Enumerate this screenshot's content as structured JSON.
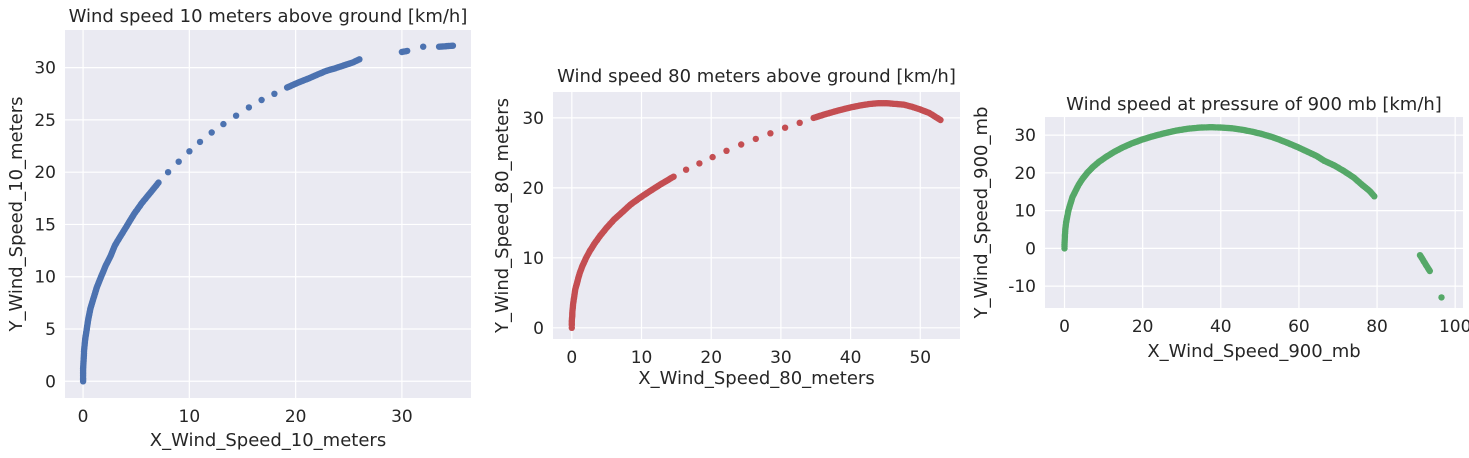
{
  "chart_data": [
    {
      "type": "scatter",
      "title": "Wind speed 10 meters above ground [km/h]",
      "xlabel": "X_Wind_Speed_10_meters",
      "ylabel": "Y_Wind_Speed_10_meters",
      "xlim": [
        -1.7,
        36.5
      ],
      "ylim": [
        -1.6,
        33.6
      ],
      "xticks": [
        0,
        10,
        20,
        30
      ],
      "yticks": [
        0,
        5,
        10,
        15,
        20,
        25,
        30
      ],
      "grid": true,
      "color": "#4C72B0",
      "x": [
        0,
        0,
        0,
        0,
        0.05,
        0.1,
        0.2,
        0.35,
        0.5,
        0.7,
        1.0,
        1.3,
        1.7,
        2.1,
        2.6,
        3.0,
        3.6,
        4.2,
        4.8,
        5.5,
        6.3,
        7.1,
        8.0,
        9.0,
        10.0,
        11.0,
        12.1,
        13.2,
        14.4,
        15.6,
        16.8,
        18.0,
        19.2,
        20.3,
        21.3,
        22.2,
        22.9,
        23.6,
        24.5,
        25.4,
        26.0,
        30.0,
        30.5,
        32.0,
        33.5,
        34.8
      ],
      "y": [
        0,
        0.3,
        0.7,
        1.2,
        2.0,
        3.0,
        4.0,
        5.0,
        6.0,
        7.0,
        8.0,
        9.0,
        10.0,
        11.0,
        12.0,
        13.0,
        14.0,
        15.0,
        16.0,
        17.0,
        18.0,
        19.0,
        20.0,
        21.0,
        22.0,
        22.9,
        23.8,
        24.6,
        25.4,
        26.2,
        26.9,
        27.5,
        28.1,
        28.6,
        29.0,
        29.4,
        29.7,
        29.9,
        30.2,
        30.5,
        30.8,
        31.5,
        31.6,
        32.0,
        32.0,
        32.1
      ]
    },
    {
      "type": "scatter",
      "title": "Wind speed 80 meters above ground [km/h]",
      "xlabel": "X_Wind_Speed_80_meters",
      "ylabel": "Y_Wind_Speed_80_meters",
      "xlim": [
        -2.7,
        55.7
      ],
      "ylim": [
        -1.6,
        33.7
      ],
      "xticks": [
        0,
        10,
        20,
        30,
        40,
        50
      ],
      "yticks": [
        0,
        10,
        20,
        30
      ],
      "grid": true,
      "color": "#C44E52",
      "x": [
        0,
        0,
        0,
        0.05,
        0.1,
        0.2,
        0.35,
        0.5,
        0.8,
        1.1,
        1.5,
        2.0,
        2.6,
        3.3,
        4.1,
        5.0,
        6.0,
        7.2,
        8.4,
        9.8,
        11.3,
        12.9,
        14.6,
        16.4,
        18.3,
        20.2,
        22.2,
        24.3,
        26.4,
        28.5,
        30.6,
        32.7,
        34.7,
        36.6,
        38.4,
        40.0,
        41.5,
        42.8,
        44.0,
        45.2,
        46.4,
        47.6,
        48.8,
        50.0,
        51.3,
        52.9
      ],
      "y": [
        0,
        0.4,
        0.9,
        1.6,
        2.5,
        3.5,
        4.5,
        5.5,
        6.6,
        7.7,
        8.8,
        9.9,
        11.0,
        12.1,
        13.2,
        14.3,
        15.4,
        16.5,
        17.6,
        18.6,
        19.6,
        20.6,
        21.6,
        22.6,
        23.5,
        24.4,
        25.3,
        26.2,
        27.0,
        27.8,
        28.6,
        29.3,
        30.0,
        30.6,
        31.1,
        31.5,
        31.8,
        32.0,
        32.1,
        32.1,
        32.0,
        31.9,
        31.6,
        31.2,
        30.7,
        29.7
      ]
    },
    {
      "type": "scatter",
      "title": "Wind speed at pressure of 900 mb [km/h]",
      "xlabel": "X_Wind_Speed_900_mb",
      "ylabel": "Y_Wind_Speed_900_mb",
      "xlim": [
        -5.0,
        102.0
      ],
      "ylim": [
        -15.8,
        34.8
      ],
      "xticks": [
        0,
        20,
        40,
        60,
        80,
        100
      ],
      "yticks": [
        -10,
        0,
        10,
        20,
        30
      ],
      "grid": true,
      "color": "#55A868",
      "x": [
        0,
        0,
        0,
        0.05,
        0.1,
        0.2,
        0.4,
        0.7,
        1.0,
        1.5,
        2.0,
        2.8,
        3.6,
        4.6,
        5.8,
        7.2,
        8.8,
        10.6,
        12.6,
        14.8,
        17.2,
        19.8,
        22.6,
        25.6,
        28.6,
        31.6,
        34.6,
        37.5,
        40.3,
        43.0,
        45.6,
        48.1,
        50.5,
        52.8,
        55.0,
        57.2,
        59.5,
        61.8,
        64.5,
        66.5,
        69.0,
        71.5,
        74.0,
        76.0,
        78.0,
        79.3,
        91.0,
        92.0,
        93.5,
        96.5
      ],
      "y": [
        0,
        0.5,
        1.0,
        2.0,
        3.5,
        5.0,
        6.8,
        8.5,
        10.0,
        11.8,
        13.5,
        15.2,
        16.8,
        18.4,
        20.0,
        21.5,
        22.9,
        24.2,
        25.5,
        26.7,
        27.8,
        28.8,
        29.7,
        30.5,
        31.2,
        31.7,
        32.0,
        32.1,
        32.0,
        31.8,
        31.4,
        30.9,
        30.3,
        29.6,
        28.8,
        27.9,
        26.9,
        25.8,
        24.5,
        23.2,
        22.0,
        20.5,
        18.8,
        17.0,
        15.3,
        13.8,
        -1.8,
        -3.5,
        -6.0,
        -13.0
      ]
    }
  ]
}
